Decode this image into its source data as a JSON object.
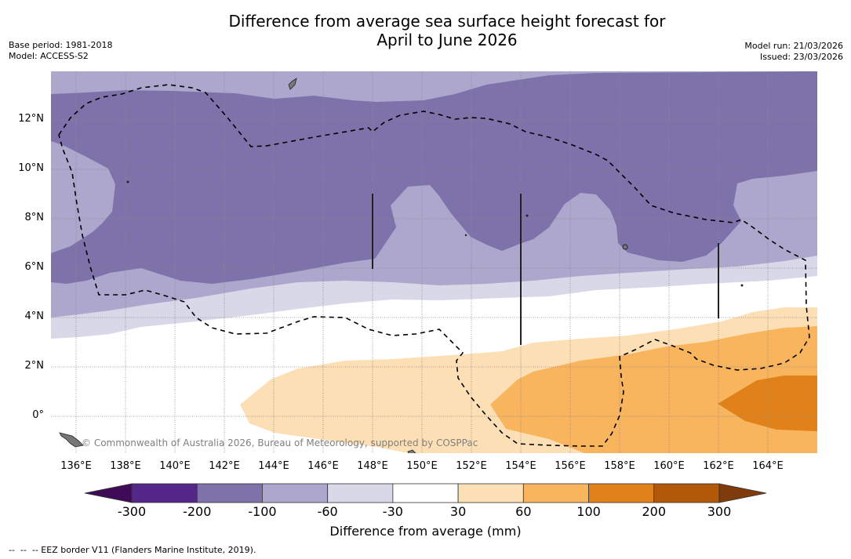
{
  "header": {
    "title_line1": "Difference from average sea surface height forecast for",
    "title_line2": "April to June 2026",
    "base_period": "Base period: 1981-2018",
    "model": "Model: ACCESS-S2",
    "model_run": "Model run: 21/03/2026",
    "issued": "Issued: 23/03/2026"
  },
  "map": {
    "lon_range": [
      135,
      166
    ],
    "lat_range": [
      -1.5,
      14
    ],
    "lon_ticks": [
      "136°E",
      "138°E",
      "140°E",
      "142°E",
      "144°E",
      "146°E",
      "148°E",
      "150°E",
      "152°E",
      "154°E",
      "156°E",
      "158°E",
      "160°E",
      "162°E",
      "164°E"
    ],
    "lat_ticks": [
      "12°N",
      "10°N",
      "8°N",
      "6°N",
      "4°N",
      "2°N",
      "0°"
    ],
    "copyright": "© Commonwealth of Australia 2026, Bureau of Meteorology, supported by COSPPac"
  },
  "colorbar": {
    "title": "Difference from average (mm)",
    "tick_labels": [
      "-300",
      "-200",
      "-100",
      "-60",
      "-30",
      "30",
      "60",
      "100",
      "200",
      "300"
    ],
    "colors": {
      "below_min": "#3f0a57",
      "bins": [
        "#55278a",
        "#7e72aa",
        "#ada6cd",
        "#d8d8e9",
        "#ffffff",
        "#fddfb5",
        "#f9b45e",
        "#e08219",
        "#b15809"
      ],
      "above_max": "#7f3b0c"
    }
  },
  "footnote": "--  --  -- EEZ border V11 (Flanders Marine Institute, 2019)."
}
